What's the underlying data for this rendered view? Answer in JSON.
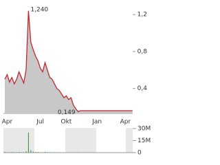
{
  "chart_data": [
    {
      "type": "line",
      "categories": [
        null,
        "Apr",
        null,
        null,
        null,
        null,
        null,
        null,
        null,
        null,
        null,
        null,
        null,
        null,
        null,
        "Jul",
        null,
        null,
        null,
        null,
        null,
        null,
        null,
        null,
        null,
        null,
        "Okt",
        null,
        null,
        null,
        null,
        null,
        null,
        null,
        null,
        null,
        null,
        null,
        null,
        "Jan",
        null,
        null,
        null,
        null,
        null,
        null,
        null,
        null,
        null,
        null,
        null,
        "Apr",
        null,
        null,
        null
      ],
      "series": [
        {
          "color": "#c0272d",
          "fill": "#c8c8c8",
          "values": [
            0.5,
            0.55,
            0.47,
            0.52,
            0.45,
            0.5,
            0.58,
            0.52,
            0.46,
            0.6,
            1.24,
            0.9,
            0.82,
            0.75,
            0.7,
            0.62,
            0.58,
            0.68,
            0.6,
            0.52,
            0.5,
            0.45,
            0.4,
            0.38,
            0.34,
            0.3,
            0.32,
            0.28,
            0.3,
            0.22,
            0.18,
            0.149,
            0.16,
            0.16,
            0.16,
            0.16,
            0.16,
            0.16,
            0.16,
            0.16,
            0.16,
            0.16,
            0.16,
            0.16,
            0.16,
            0.16,
            0.16,
            0.16,
            0.16,
            0.16,
            0.16,
            0.16,
            0.16,
            0.16,
            0.16
          ]
        }
      ],
      "annotations": [
        "1,240",
        "0,149"
      ],
      "ylim": [
        0.13,
        1.32
      ],
      "yticks": [
        {
          "value": 0.4,
          "label": "0,4"
        },
        {
          "value": 0.8,
          "label": "0,8"
        },
        {
          "value": 1.2,
          "label": "1,2"
        }
      ],
      "grid": false
    },
    {
      "type": "bar",
      "series": [
        {
          "color": "#2e8b3a",
          "values": [
            800000,
            600000,
            500000,
            700000,
            400000,
            500000,
            900000,
            600000,
            500000,
            1500000,
            25000000,
            3000000,
            1200000,
            900000,
            800000,
            600000,
            500000,
            1000000,
            700000,
            500000,
            400000,
            400000,
            300000,
            500000,
            300000,
            300000,
            400000,
            300000,
            300000,
            500000,
            400000,
            600000,
            200000,
            200000,
            200000,
            200000,
            200000,
            200000,
            200000,
            200000,
            200000,
            200000,
            200000,
            200000,
            200000,
            200000,
            200000,
            200000,
            200000,
            200000,
            200000,
            200000,
            200000,
            200000,
            200000
          ]
        }
      ],
      "ylim": [
        0,
        30000000
      ],
      "yticks": [
        {
          "value": 0,
          "label": "0"
        },
        {
          "value": 15000000,
          "label": "15M"
        },
        {
          "value": 30000000,
          "label": "30M"
        }
      ]
    }
  ]
}
